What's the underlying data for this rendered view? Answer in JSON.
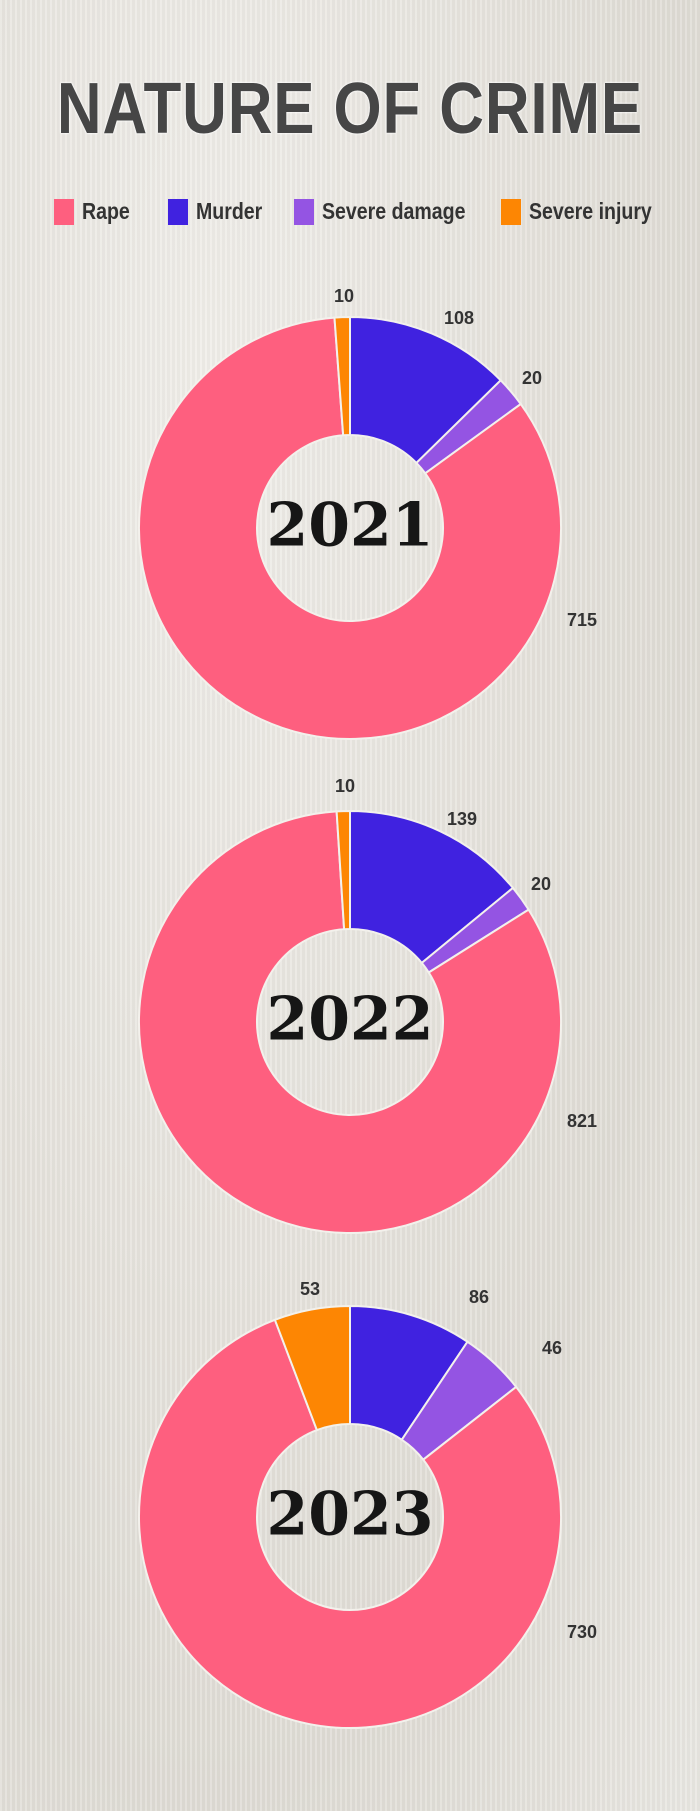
{
  "title": "NATURE OF CRIME",
  "legend": [
    {
      "label": "Rape",
      "color": "#fe5f7f"
    },
    {
      "label": "Murder",
      "color": "#4022e0"
    },
    {
      "label": "Severe damage",
      "color": "#9454e3"
    },
    {
      "label": "Severe injury",
      "color": "#fd8603"
    }
  ],
  "chart_data": [
    {
      "type": "pie",
      "donut": true,
      "center_label": "2021",
      "categories": [
        "Murder",
        "Severe damage",
        "Rape",
        "Severe injury"
      ],
      "values": [
        108,
        20,
        715,
        10
      ]
    },
    {
      "type": "pie",
      "donut": true,
      "center_label": "2022",
      "categories": [
        "Murder",
        "Severe damage",
        "Rape",
        "Severe injury"
      ],
      "values": [
        139,
        20,
        821,
        10
      ]
    },
    {
      "type": "pie",
      "donut": true,
      "center_label": "2023",
      "categories": [
        "Murder",
        "Severe damage",
        "Rape",
        "Severe injury"
      ],
      "values": [
        86,
        46,
        730,
        53
      ]
    }
  ]
}
